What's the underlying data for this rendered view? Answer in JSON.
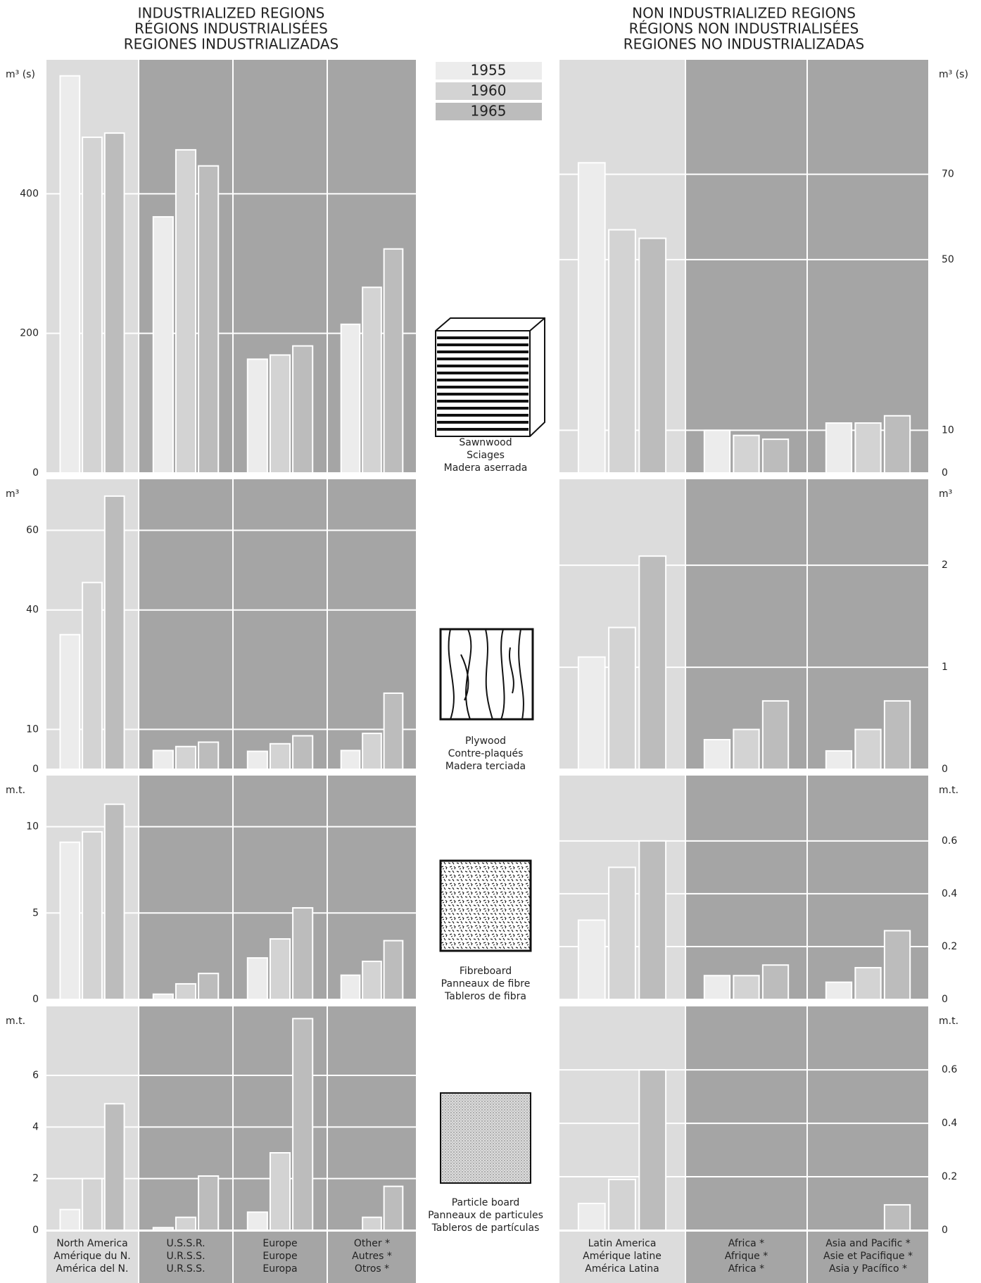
{
  "legend": [
    {
      "name": "1955",
      "color": "#ececec"
    },
    {
      "name": "1960",
      "color": "#d3d3d3"
    },
    {
      "name": "1965",
      "color": "#bcbcbc"
    }
  ],
  "products": [
    [
      "Sawnwood",
      "Sciages",
      "Madera aserrada"
    ],
    [
      "Plywood",
      "Contre-plaqués",
      "Madera terciada"
    ],
    [
      "Fibreboard",
      "Panneaux de fibre",
      "Tableros de fibra"
    ],
    [
      "Particle board",
      "Panneaux de particules",
      "Tableros de partículas"
    ]
  ],
  "chart_data": [
    {
      "type": "bar",
      "axis_side": "left",
      "title": [
        "INDUSTRIALIZED REGIONS",
        "RÉGIONS INDUSTRIALISÉES",
        "REGIONES INDUSTRIALIZADAS"
      ],
      "categories": [
        [
          "North America",
          "Amérique du N.",
          "América del N."
        ],
        [
          "U.S.S.R.",
          "U.R.S.S.",
          "U.R.S.S."
        ],
        [
          "Europe",
          "Europe",
          "Europa"
        ],
        [
          "Other *",
          "Autres *",
          "Otros *"
        ]
      ],
      "panels": [
        {
          "unit": "m³ (s)",
          "ylim": [
            0,
            593
          ],
          "yticks": [
            0,
            200,
            400
          ],
          "series": [
            {
              "values": [
                569,
                367,
                163,
                213
              ]
            },
            {
              "values": [
                481,
                463,
                169,
                266
              ]
            },
            {
              "values": [
                487,
                440,
                182,
                321
              ]
            }
          ]
        },
        {
          "unit": "m³",
          "ylim": [
            0,
            73
          ],
          "yticks": [
            0,
            10,
            40,
            60
          ],
          "series": [
            {
              "values": [
                33.8,
                4.7,
                4.5,
                4.7
              ]
            },
            {
              "values": [
                46.9,
                5.7,
                6.4,
                9.0
              ]
            },
            {
              "values": [
                68.6,
                6.8,
                8.4,
                19.1
              ]
            }
          ]
        },
        {
          "unit": "m.t.",
          "ylim": [
            0,
            13
          ],
          "yticks": [
            0,
            5,
            10
          ],
          "series": [
            {
              "values": [
                9.1,
                0.3,
                2.4,
                1.4
              ]
            },
            {
              "values": [
                9.7,
                0.9,
                3.5,
                2.2
              ]
            },
            {
              "values": [
                11.3,
                1.5,
                5.3,
                3.4
              ]
            }
          ]
        },
        {
          "unit": "m.t.",
          "ylim": [
            0,
            8.7
          ],
          "yticks": [
            0,
            2,
            4,
            6
          ],
          "series": [
            {
              "values": [
                0.8,
                0.1,
                0.7,
                0
              ]
            },
            {
              "values": [
                2.0,
                0.5,
                3.0,
                0.5
              ]
            },
            {
              "values": [
                4.9,
                2.1,
                8.2,
                1.7
              ]
            }
          ]
        }
      ]
    },
    {
      "type": "bar",
      "axis_side": "right",
      "title": [
        "NON INDUSTRIALIZED REGIONS",
        "RÉGIONS NON INDUSTRIALISÉES",
        "REGIONES NO INDUSTRIALIZADAS"
      ],
      "categories": [
        [
          "Latin America",
          "Amérique latine",
          "América Latina"
        ],
        [
          "Africa *",
          "Afrique *",
          "Africa *"
        ],
        [
          "Asia and Pacific *",
          "Asie et Pacifique *",
          "Asia y Pacífico *"
        ]
      ],
      "panels": [
        {
          "unit": "m³ (s)",
          "ylim": [
            0,
            97
          ],
          "yticks": [
            0,
            10,
            50,
            70
          ],
          "series": [
            {
              "values": [
                72.7,
                10,
                11.7
              ]
            },
            {
              "values": [
                57,
                8.8,
                11.7
              ]
            },
            {
              "values": [
                55,
                7.9,
                13.4
              ]
            }
          ]
        },
        {
          "unit": "m³",
          "ylim": [
            0,
            2.85
          ],
          "yticks": [
            0,
            1,
            2
          ],
          "series": [
            {
              "values": [
                1.1,
                0.29,
                0.18
              ]
            },
            {
              "values": [
                1.39,
                0.39,
                0.39
              ]
            },
            {
              "values": [
                2.09,
                0.67,
                0.67
              ]
            }
          ]
        },
        {
          "unit": "m.t.",
          "ylim": [
            0,
            0.85
          ],
          "yticks": [
            0,
            0.2,
            0.4,
            0.6
          ],
          "series": [
            {
              "values": [
                0.3,
                0.09,
                0.065
              ]
            },
            {
              "values": [
                0.5,
                0.09,
                0.12
              ]
            },
            {
              "values": [
                0.6,
                0.13,
                0.26
              ]
            }
          ]
        },
        {
          "unit": "m.t.",
          "ylim": [
            0,
            0.84
          ],
          "yticks": [
            0,
            0.2,
            0.4,
            0.6
          ],
          "series": [
            {
              "values": [
                0.1,
                0,
                0
              ]
            },
            {
              "values": [
                0.19,
                0,
                0
              ]
            },
            {
              "values": [
                0.6,
                0,
                0.095
              ]
            }
          ]
        }
      ]
    }
  ]
}
